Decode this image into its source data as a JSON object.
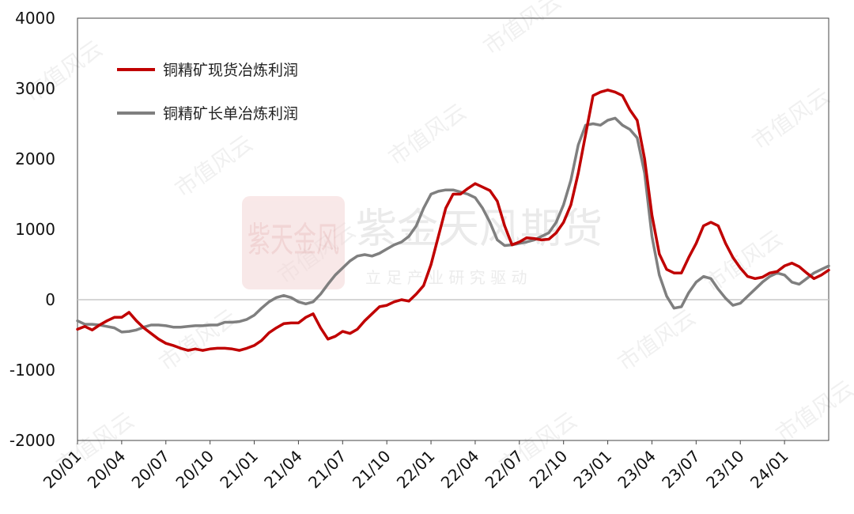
{
  "chart_data": {
    "type": "line",
    "title": "",
    "xlabel": "",
    "ylabel": "",
    "ylim": [
      -2000,
      4000
    ],
    "y_ticks": [
      4000,
      3000,
      2000,
      1000,
      0,
      -1000,
      -2000
    ],
    "x_ticks": [
      "20/01",
      "20/04",
      "20/07",
      "20/10",
      "21/01",
      "21/04",
      "21/07",
      "21/10",
      "22/01",
      "22/04",
      "22/07",
      "22/10",
      "23/01",
      "23/04",
      "23/07",
      "23/10",
      "24/01"
    ],
    "x_axis": "months since 2020-01 (0 = 20/01, 51 = 24/04)",
    "xlim": [
      0,
      51
    ],
    "grid": false,
    "legend_position": "top-left",
    "watermark": {
      "logo_text": "紫金天风期货",
      "tagline": "立 足 产 业   研 究 驱 动",
      "seal_text": "紫天金风",
      "repeat_text": "市值风云"
    },
    "series": [
      {
        "name": "铜精矿现货冶炼利润",
        "color": "#c00000",
        "points": [
          [
            0,
            -420
          ],
          [
            0.5,
            -380
          ],
          [
            1,
            -430
          ],
          [
            1.5,
            -360
          ],
          [
            2,
            -300
          ],
          [
            2.5,
            -250
          ],
          [
            3,
            -250
          ],
          [
            3.5,
            -180
          ],
          [
            4,
            -300
          ],
          [
            4.5,
            -400
          ],
          [
            5,
            -480
          ],
          [
            5.5,
            -560
          ],
          [
            6,
            -620
          ],
          [
            6.5,
            -650
          ],
          [
            7,
            -690
          ],
          [
            7.5,
            -720
          ],
          [
            8,
            -700
          ],
          [
            8.5,
            -720
          ],
          [
            9,
            -700
          ],
          [
            9.5,
            -690
          ],
          [
            10,
            -690
          ],
          [
            10.5,
            -700
          ],
          [
            11,
            -720
          ],
          [
            11.5,
            -690
          ],
          [
            12,
            -650
          ],
          [
            12.5,
            -580
          ],
          [
            13,
            -470
          ],
          [
            13.5,
            -400
          ],
          [
            14,
            -340
          ],
          [
            14.5,
            -330
          ],
          [
            15,
            -330
          ],
          [
            15.5,
            -250
          ],
          [
            16,
            -200
          ],
          [
            16.5,
            -400
          ],
          [
            17,
            -560
          ],
          [
            17.5,
            -520
          ],
          [
            18,
            -450
          ],
          [
            18.5,
            -480
          ],
          [
            19,
            -420
          ],
          [
            19.5,
            -300
          ],
          [
            20,
            -200
          ],
          [
            20.5,
            -100
          ],
          [
            21,
            -80
          ],
          [
            21.5,
            -30
          ],
          [
            22,
            0
          ],
          [
            22.5,
            -20
          ],
          [
            23,
            80
          ],
          [
            23.5,
            200
          ],
          [
            24,
            500
          ],
          [
            24.5,
            900
          ],
          [
            25,
            1300
          ],
          [
            25.5,
            1500
          ],
          [
            26,
            1500
          ],
          [
            26.5,
            1580
          ],
          [
            27,
            1650
          ],
          [
            27.5,
            1600
          ],
          [
            28,
            1550
          ],
          [
            28.5,
            1400
          ],
          [
            29,
            1050
          ],
          [
            29.5,
            780
          ],
          [
            30,
            820
          ],
          [
            30.5,
            880
          ],
          [
            31,
            870
          ],
          [
            31.5,
            850
          ],
          [
            32,
            860
          ],
          [
            32.5,
            950
          ],
          [
            33,
            1100
          ],
          [
            33.5,
            1350
          ],
          [
            34,
            1800
          ],
          [
            34.5,
            2350
          ],
          [
            35,
            2900
          ],
          [
            35.5,
            2950
          ],
          [
            36,
            2980
          ],
          [
            36.5,
            2950
          ],
          [
            37,
            2900
          ],
          [
            37.5,
            2700
          ],
          [
            38,
            2550
          ],
          [
            38.5,
            2000
          ],
          [
            39,
            1200
          ],
          [
            39.5,
            650
          ],
          [
            40,
            430
          ],
          [
            40.5,
            380
          ],
          [
            41,
            380
          ],
          [
            41.5,
            600
          ],
          [
            42,
            800
          ],
          [
            42.5,
            1050
          ],
          [
            43,
            1100
          ],
          [
            43.5,
            1050
          ],
          [
            44,
            800
          ],
          [
            44.5,
            600
          ],
          [
            45,
            450
          ],
          [
            45.5,
            330
          ],
          [
            46,
            300
          ],
          [
            46.5,
            320
          ],
          [
            47,
            380
          ],
          [
            47.5,
            400
          ],
          [
            48,
            480
          ],
          [
            48.5,
            520
          ],
          [
            49,
            470
          ],
          [
            49.5,
            380
          ],
          [
            50,
            300
          ],
          [
            50.5,
            350
          ],
          [
            51,
            420
          ]
        ]
      },
      {
        "name": "铜精矿长单冶炼利润",
        "color": "#7f7f7f",
        "points": [
          [
            0,
            -300
          ],
          [
            0.5,
            -350
          ],
          [
            1,
            -350
          ],
          [
            1.5,
            -360
          ],
          [
            2,
            -380
          ],
          [
            2.5,
            -400
          ],
          [
            3,
            -460
          ],
          [
            3.5,
            -450
          ],
          [
            4,
            -430
          ],
          [
            4.5,
            -390
          ],
          [
            5,
            -360
          ],
          [
            5.5,
            -360
          ],
          [
            6,
            -370
          ],
          [
            6.5,
            -390
          ],
          [
            7,
            -390
          ],
          [
            7.5,
            -380
          ],
          [
            8,
            -370
          ],
          [
            8.5,
            -370
          ],
          [
            9,
            -360
          ],
          [
            9.5,
            -360
          ],
          [
            10,
            -320
          ],
          [
            10.5,
            -320
          ],
          [
            11,
            -310
          ],
          [
            11.5,
            -280
          ],
          [
            12,
            -220
          ],
          [
            12.5,
            -120
          ],
          [
            13,
            -30
          ],
          [
            13.5,
            30
          ],
          [
            14,
            60
          ],
          [
            14.5,
            30
          ],
          [
            15,
            -30
          ],
          [
            15.5,
            -60
          ],
          [
            16,
            -30
          ],
          [
            16.5,
            80
          ],
          [
            17,
            220
          ],
          [
            17.5,
            350
          ],
          [
            18,
            450
          ],
          [
            18.5,
            550
          ],
          [
            19,
            620
          ],
          [
            19.5,
            640
          ],
          [
            20,
            620
          ],
          [
            20.5,
            660
          ],
          [
            21,
            720
          ],
          [
            21.5,
            780
          ],
          [
            22,
            820
          ],
          [
            22.5,
            900
          ],
          [
            23,
            1050
          ],
          [
            23.5,
            1300
          ],
          [
            24,
            1500
          ],
          [
            24.5,
            1540
          ],
          [
            25,
            1560
          ],
          [
            25.5,
            1560
          ],
          [
            26,
            1530
          ],
          [
            26.5,
            1500
          ],
          [
            27,
            1450
          ],
          [
            27.5,
            1300
          ],
          [
            28,
            1100
          ],
          [
            28.5,
            850
          ],
          [
            29,
            770
          ],
          [
            29.5,
            780
          ],
          [
            30,
            800
          ],
          [
            30.5,
            820
          ],
          [
            31,
            850
          ],
          [
            31.5,
            900
          ],
          [
            32,
            950
          ],
          [
            32.5,
            1100
          ],
          [
            33,
            1350
          ],
          [
            33.5,
            1700
          ],
          [
            34,
            2200
          ],
          [
            34.5,
            2480
          ],
          [
            35,
            2500
          ],
          [
            35.5,
            2480
          ],
          [
            36,
            2550
          ],
          [
            36.5,
            2580
          ],
          [
            37,
            2480
          ],
          [
            37.5,
            2420
          ],
          [
            38,
            2300
          ],
          [
            38.5,
            1800
          ],
          [
            39,
            900
          ],
          [
            39.5,
            350
          ],
          [
            40,
            50
          ],
          [
            40.5,
            -120
          ],
          [
            41,
            -100
          ],
          [
            41.5,
            100
          ],
          [
            42,
            250
          ],
          [
            42.5,
            330
          ],
          [
            43,
            300
          ],
          [
            43.5,
            150
          ],
          [
            44,
            20
          ],
          [
            44.5,
            -80
          ],
          [
            45,
            -50
          ],
          [
            45.5,
            50
          ],
          [
            46,
            150
          ],
          [
            46.5,
            250
          ],
          [
            47,
            330
          ],
          [
            47.5,
            380
          ],
          [
            48,
            350
          ],
          [
            48.5,
            250
          ],
          [
            49,
            220
          ],
          [
            49.5,
            300
          ],
          [
            50,
            380
          ],
          [
            50.5,
            430
          ],
          [
            51,
            480
          ]
        ]
      }
    ]
  }
}
